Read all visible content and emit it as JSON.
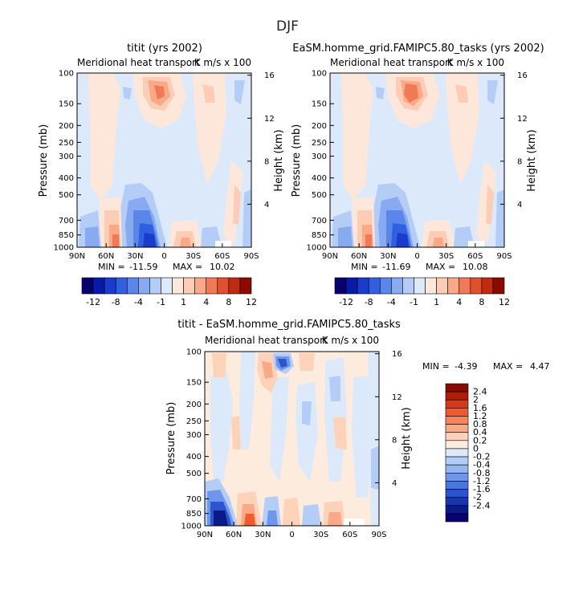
{
  "title": "DJF",
  "chart_data": [
    {
      "type": "heatmap",
      "title": "titit (yrs 2002)",
      "subtitle_left": "Meridional heat transport",
      "subtitle_right": "K m/s x 100",
      "xlabel": "",
      "ylabel": "Pressure (mb)",
      "ylabel_right": "Height (km)",
      "x_ticks": [
        "90N",
        "60N",
        "30N",
        "0",
        "30S",
        "60S",
        "90S"
      ],
      "y_ticks": [
        "100",
        "150",
        "200",
        "250",
        "300",
        "400",
        "500",
        "700",
        "850",
        "1000"
      ],
      "y_ticks_right": [
        "16",
        "12",
        "8",
        "4"
      ],
      "min_label": "MIN =",
      "min_value": "-11.59",
      "max_label": "MAX =",
      "max_value": "10.02",
      "colorbar_ticks": [
        "-12",
        "-8",
        "-4",
        "-1",
        "1",
        "4",
        "8",
        "12"
      ]
    },
    {
      "type": "heatmap",
      "title": "EaSM.homme_grid.FAMIPC5.80_tasks (yrs 2002)",
      "subtitle_left": "Meridional heat transport",
      "subtitle_right": "K m/s x 100",
      "xlabel": "",
      "ylabel": "Pressure (mb)",
      "ylabel_right": "Height (km)",
      "x_ticks": [
        "90N",
        "60N",
        "30N",
        "0",
        "30S",
        "60S",
        "90S"
      ],
      "y_ticks": [
        "100",
        "150",
        "200",
        "250",
        "300",
        "400",
        "500",
        "700",
        "850",
        "1000"
      ],
      "y_ticks_right": [
        "16",
        "12",
        "8",
        "4"
      ],
      "min_label": "MIN =",
      "min_value": "-11.69",
      "max_label": "MAX =",
      "max_value": "10.08",
      "colorbar_ticks": [
        "-12",
        "-8",
        "-4",
        "-1",
        "1",
        "4",
        "8",
        "12"
      ]
    },
    {
      "type": "heatmap",
      "title": "titit - EaSM.homme_grid.FAMIPC5.80_tasks",
      "subtitle_left": "Meridional heat transport",
      "subtitle_right": "K m/s x 100",
      "xlabel": "",
      "ylabel": "Pressure (mb)",
      "ylabel_right": "Height (km)",
      "x_ticks": [
        "90N",
        "60N",
        "30N",
        "0",
        "30S",
        "60S",
        "90S"
      ],
      "y_ticks": [
        "100",
        "150",
        "200",
        "250",
        "300",
        "400",
        "500",
        "700",
        "850",
        "1000"
      ],
      "y_ticks_right": [
        "16",
        "12",
        "8",
        "4"
      ],
      "min_label": "MIN =",
      "min_value": "-4.39",
      "max_label": "MAX =",
      "max_value": "4.47",
      "colorbar_ticks": [
        "2.4",
        "2",
        "1.6",
        "1.2",
        "0.8",
        "0.4",
        "0.2",
        "0",
        "-0.2",
        "-0.4",
        "-0.8",
        "-1.2",
        "-1.6",
        "-2",
        "-2.4"
      ]
    }
  ],
  "colors": {
    "palette_main": [
      "#08006e",
      "#0a1aa8",
      "#1a3ccc",
      "#3060e0",
      "#5a86ea",
      "#88aaf0",
      "#b4cdf6",
      "#dce9fb",
      "#fde7da",
      "#fcccb4",
      "#f9a888",
      "#f07a56",
      "#e0502c",
      "#c02a12",
      "#8a0a00"
    ],
    "palette_diff": [
      "#8a0a00",
      "#b01c0a",
      "#d8381a",
      "#f05a2c",
      "#f7855a",
      "#f9a888",
      "#fcd2b8",
      "#fdebde",
      "#dce9fb",
      "#b4cdf6",
      "#96b6f2",
      "#6e96ea",
      "#4a76e0",
      "#2c54cc",
      "#1a36aa",
      "#0a1a8a",
      "#08006e"
    ]
  }
}
